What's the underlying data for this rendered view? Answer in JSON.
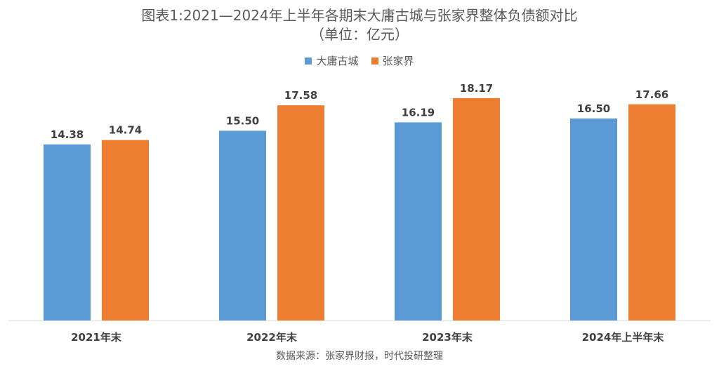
{
  "title_line1": "图表1:2021—2024年上半年各期末大庸古城与张家界整体负债额对比",
  "title_line2": "（单位：亿元）",
  "source": "数据来源：张家界财报，时代投研整理",
  "colors": {
    "series1": "#5B9BD5",
    "series2": "#ED7D31",
    "axis": "#D9D9D9",
    "label": "#404040"
  },
  "chart_data": {
    "type": "bar",
    "categories": [
      "2021年末",
      "2022年末",
      "2023年末",
      "2024年上半年末"
    ],
    "series": [
      {
        "name": "大庸古城",
        "values": [
          14.38,
          15.5,
          16.19,
          16.5
        ]
      },
      {
        "name": "张家界",
        "values": [
          14.74,
          17.58,
          18.17,
          17.66
        ]
      }
    ],
    "ylim": [
      0,
      22
    ],
    "grid": false,
    "legend_position": "top"
  }
}
